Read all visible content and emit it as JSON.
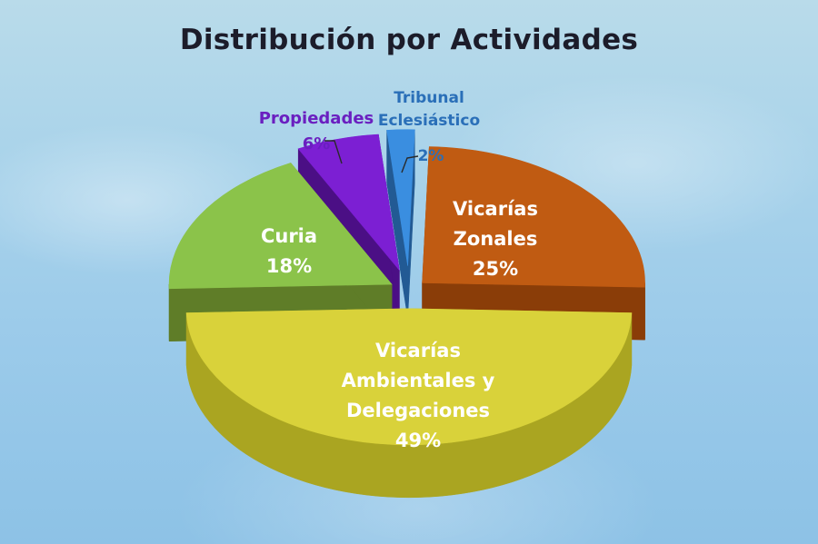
{
  "chart_data": {
    "type": "pie",
    "title": "Distribución por Actividades",
    "slices": [
      {
        "label": "Vicarías Ambientales y Delegaciones",
        "value": 49,
        "value_label": "49%",
        "color": "#d9d23a",
        "side_color": "#aaa521"
      },
      {
        "label": "Curia",
        "value": 18,
        "value_label": "18%",
        "color": "#8bc34a",
        "side_color": "#5f7d28"
      },
      {
        "label": "Propiedades",
        "value": 6,
        "value_label": "6%",
        "color": "#7c1fd3",
        "side_color": "#4b0f85"
      },
      {
        "label": "Tribunal Eclesiástico",
        "value": 2,
        "value_label": "2%",
        "color": "#3a8ee0",
        "side_color": "#225a94"
      },
      {
        "label": "Vicarías Zonales",
        "value": 25,
        "value_label": "25%",
        "color": "#c05b12",
        "side_color": "#8a3d08"
      }
    ],
    "label_colors": {
      "Vicarías Ambientales y Delegaciones": "#ffffff",
      "Curia": "#ffffff",
      "Propiedades": "#6a1fc0",
      "Tribunal Eclesiástico": "#2a6fb8",
      "Vicarías Zonales": "#ffffff"
    }
  }
}
